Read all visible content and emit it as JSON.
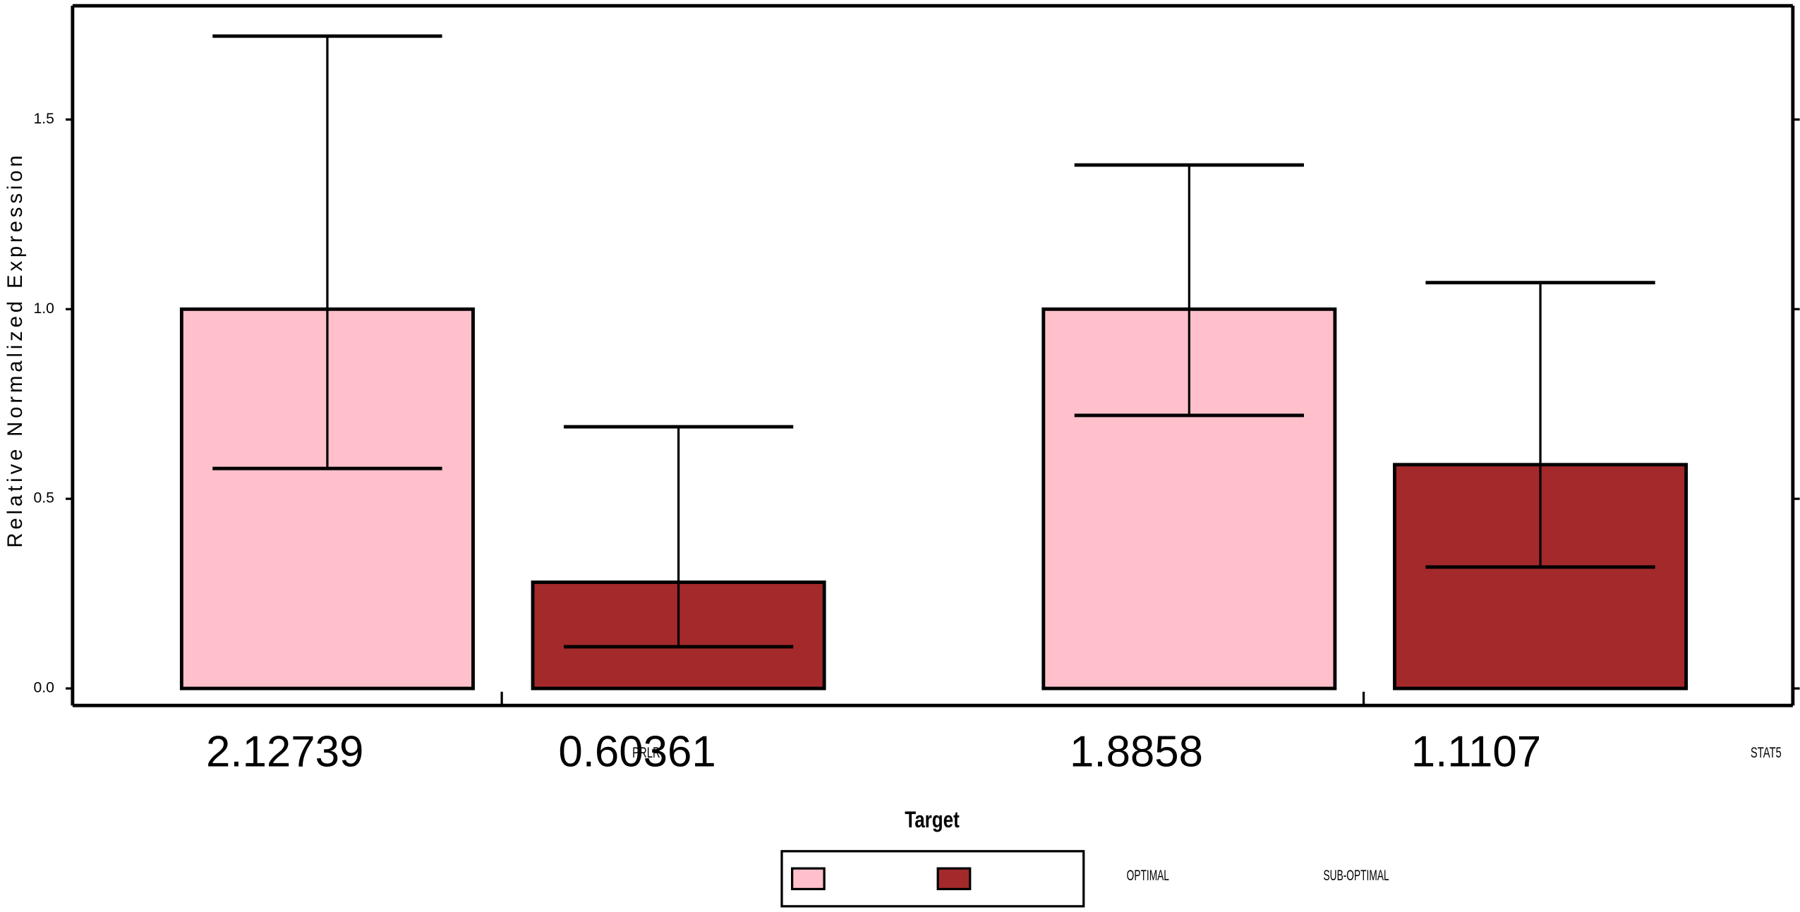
{
  "chart_data": {
    "type": "bar",
    "y_label": "Relative Normalized Expression",
    "x_label": "Target",
    "categories": [
      "PRLR",
      "STAT5"
    ],
    "series": [
      {
        "name": "OPTIMAL",
        "color": "#ffc0cb",
        "values": [
          1.0,
          1.0
        ],
        "errors": [
          [
            0.42,
            0.72
          ],
          [
            0.28,
            0.38
          ]
        ]
      },
      {
        "name": "SUB-OPTIMAL",
        "color": "#a4292b",
        "values": [
          0.28,
          0.59
        ],
        "errors": [
          [
            0.17,
            0.41
          ],
          [
            0.27,
            0.48
          ]
        ]
      }
    ],
    "annotations": [
      2.12739,
      0.60361,
      1.8858,
      1.1107
    ],
    "ylim": [
      -0.045,
      1.8
    ],
    "yticks": [
      {
        "value": 0,
        "label": "0.0"
      },
      0.5,
      {
        "value": 1,
        "label": "1.0"
      },
      1.5
    ],
    "legend": "bottom"
  }
}
